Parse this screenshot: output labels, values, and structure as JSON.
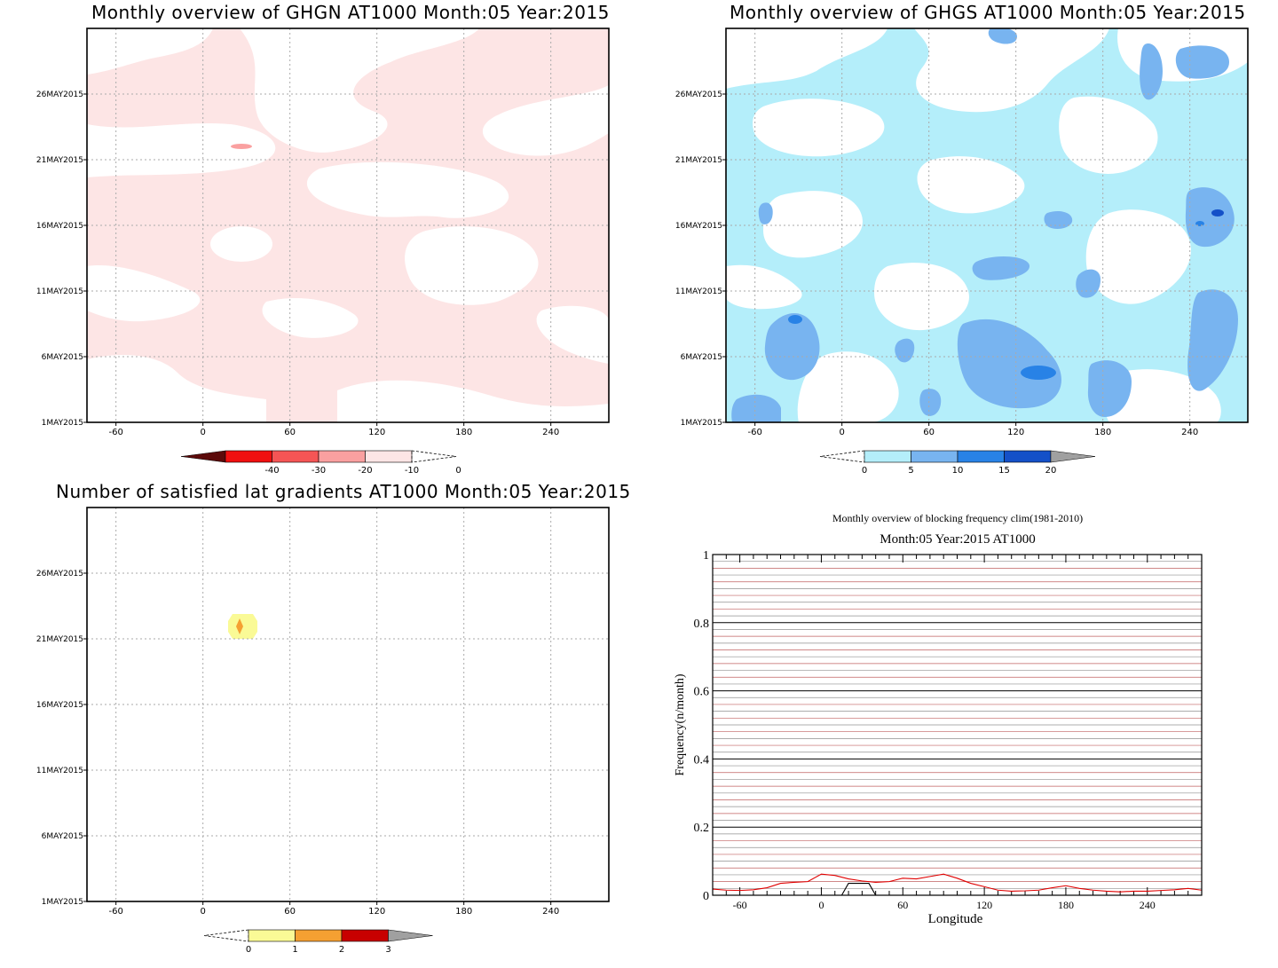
{
  "panels": {
    "ghgn": {
      "title": "Monthly overview of GHGN AT1000 Month:05 Year:2015",
      "x_ticks": [
        "-60",
        "0",
        "60",
        "120",
        "180",
        "240"
      ],
      "y_ticks": [
        "1MAY2015",
        "6MAY2015",
        "11MAY2015",
        "16MAY2015",
        "21MAY2015",
        "26MAY2015"
      ],
      "colorbar": {
        "labels": [
          "-40",
          "-30",
          "-20",
          "-10",
          "0"
        ],
        "colors": [
          "#5c0a0a",
          "#f01010",
          "#f55555",
          "#faa0a0",
          "#fde5e5",
          "#ffffff"
        ]
      }
    },
    "ghgs": {
      "title": "Monthly overview of GHGS AT1000 Month:05 Year:2015",
      "x_ticks": [
        "-60",
        "0",
        "60",
        "120",
        "180",
        "240"
      ],
      "y_ticks": [
        "1MAY2015",
        "6MAY2015",
        "11MAY2015",
        "16MAY2015",
        "21MAY2015",
        "26MAY2015"
      ],
      "colorbar": {
        "labels": [
          "0",
          "5",
          "10",
          "15",
          "20"
        ],
        "colors": [
          "#ffffff",
          "#b4eefa",
          "#78b4f0",
          "#2882e6",
          "#1450c8",
          "#a0a0a0"
        ]
      }
    },
    "gradients": {
      "title": "Number of satisfied lat gradients AT1000 Month:05 Year:2015",
      "x_ticks": [
        "-60",
        "0",
        "60",
        "120",
        "180",
        "240"
      ],
      "y_ticks": [
        "1MAY2015",
        "6MAY2015",
        "11MAY2015",
        "16MAY2015",
        "21MAY2015",
        "26MAY2015"
      ],
      "colorbar": {
        "labels": [
          "0",
          "1",
          "2",
          "3"
        ],
        "colors": [
          "#ffffff",
          "#fafa96",
          "#f5a032",
          "#c80000",
          "#a0a0a0"
        ]
      }
    },
    "frequency": {
      "title": "Monthly overview of blocking frequency clim(1981-2010)",
      "subtitle": "Month:05 Year:2015  AT1000"
    }
  },
  "chart_data": [
    {
      "type": "heatmap",
      "title": "Monthly overview of GHGN AT1000 Month:05 Year:2015",
      "x_axis": "longitude",
      "xlim": [
        -80,
        280
      ],
      "x_ticks": [
        -60,
        0,
        60,
        120,
        180,
        240
      ],
      "y_axis": "date",
      "ylim": [
        "2015-05-01",
        "2015-05-31"
      ],
      "levels": [
        -40,
        -30,
        -20,
        -10,
        0
      ],
      "summary": "Mostly values between -10 and 0 (light pink) with white gaps; one small -20..-10 patch near lon 27, 22MAY2015"
    },
    {
      "type": "heatmap",
      "title": "Monthly overview of GHGS AT1000 Month:05 Year:2015",
      "x_axis": "longitude",
      "xlim": [
        -80,
        280
      ],
      "x_ticks": [
        -60,
        0,
        60,
        120,
        180,
        240
      ],
      "y_axis": "date",
      "ylim": [
        "2015-05-01",
        "2015-05-31"
      ],
      "levels": [
        0,
        5,
        10,
        15,
        20
      ],
      "summary": "Widespread 0-5 (light cyan) with patches of 5-10 and 10-15, isolated 15-20 cores"
    },
    {
      "type": "heatmap",
      "title": "Number of satisfied lat gradients AT1000 Month:05 Year:2015",
      "x_axis": "longitude",
      "xlim": [
        -80,
        280
      ],
      "x_ticks": [
        -60,
        0,
        60,
        120,
        180,
        240
      ],
      "y_axis": "date",
      "ylim": [
        "2015-05-01",
        "2015-05-31"
      ],
      "levels": [
        0,
        1,
        2,
        3
      ],
      "summary": "Single small region near lon 25, 22MAY2015 with values 1 and 2"
    },
    {
      "type": "line",
      "title": "Monthly overview of blocking frequency clim(1981-2010)",
      "subtitle": "Month:05 Year:2015  AT1000",
      "xlabel": "Longitude",
      "ylabel": "Frequency(n/month)",
      "xlim": [
        -80,
        280
      ],
      "ylim": [
        0,
        1
      ],
      "x_ticks": [
        -60,
        0,
        60,
        120,
        180,
        240
      ],
      "y_ticks": [
        0,
        0.2,
        0.4,
        0.6,
        0.8,
        1
      ],
      "series": [
        {
          "color": "#e00000",
          "x": [
            -80,
            -70,
            -60,
            -50,
            -40,
            -30,
            -20,
            -10,
            0,
            10,
            20,
            30,
            40,
            50,
            60,
            70,
            80,
            90,
            100,
            110,
            120,
            130,
            140,
            150,
            160,
            170,
            180,
            190,
            200,
            210,
            220,
            230,
            240,
            250,
            260,
            270,
            280
          ],
          "y": [
            0.018,
            0.015,
            0.014,
            0.016,
            0.022,
            0.035,
            0.038,
            0.04,
            0.062,
            0.058,
            0.048,
            0.042,
            0.038,
            0.04,
            0.05,
            0.048,
            0.055,
            0.062,
            0.05,
            0.035,
            0.025,
            0.015,
            0.012,
            0.013,
            0.015,
            0.022,
            0.028,
            0.02,
            0.015,
            0.012,
            0.01,
            0.012,
            0.012,
            0.014,
            0.016,
            0.02,
            0.015
          ]
        },
        {
          "color": "#000000",
          "x": [
            15,
            20,
            35,
            40
          ],
          "y": [
            0.0,
            0.035,
            0.035,
            0.0
          ]
        }
      ]
    }
  ]
}
